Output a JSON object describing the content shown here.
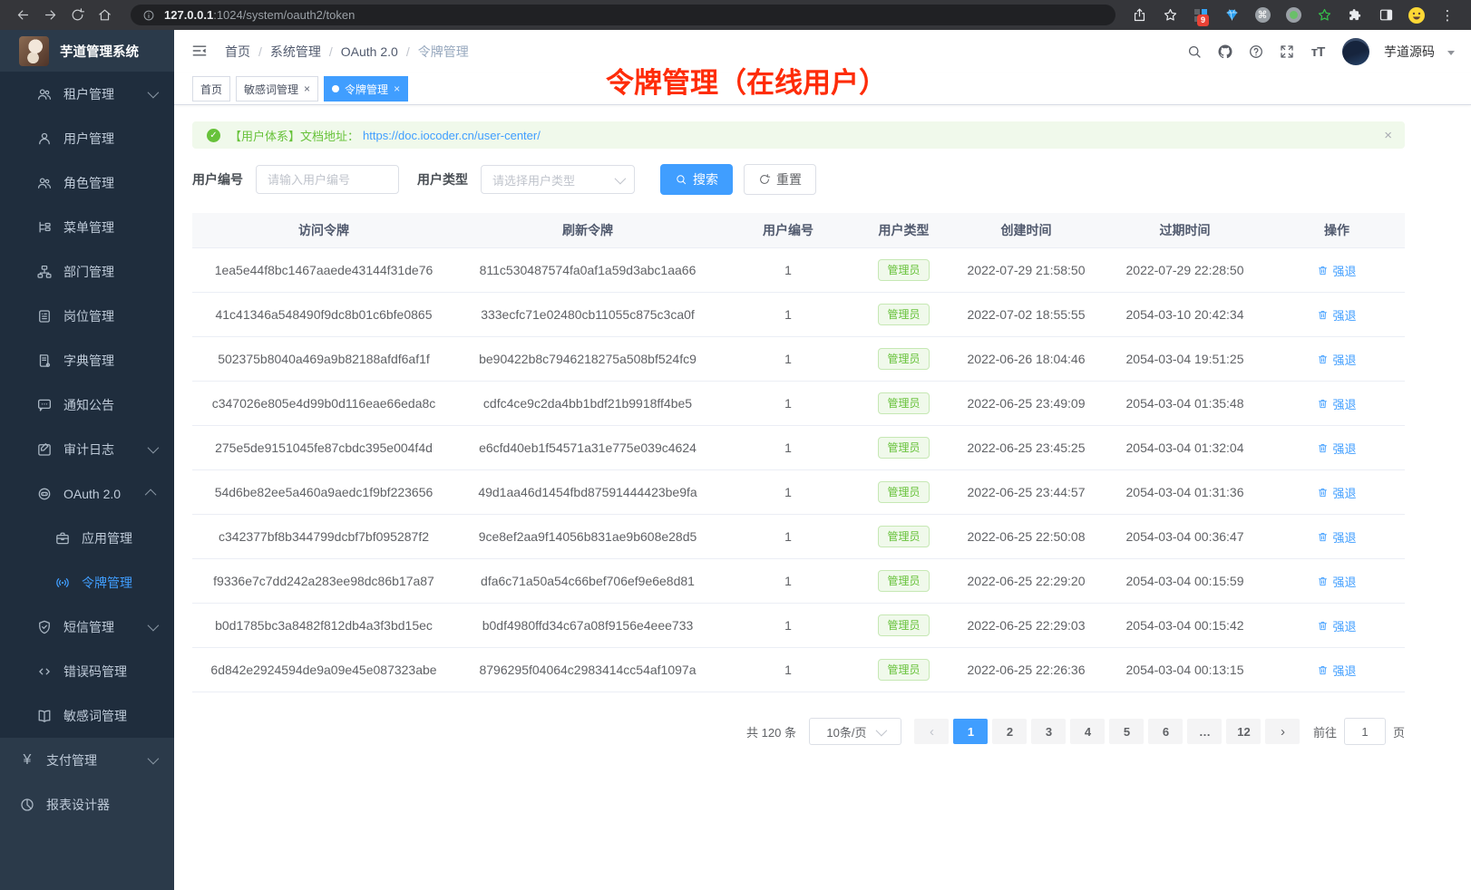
{
  "colors": {
    "accent": "#409eff",
    "success": "#67c23a",
    "annotation_red": "#fe2c09",
    "sidebar_bg": "#2b3a4a",
    "sidebar_submenu_bg": "#1f2d3d",
    "alert_bg": "#f0f9eb"
  },
  "icon_glyphs": {
    "yen": "¥",
    "font-size": "тT",
    "close": "×",
    "kebab": "⋮",
    "cmd": "⌘",
    "prev": "‹",
    "next": "›",
    "check": "✓",
    "ellipsis": "•••"
  },
  "browser": {
    "url_host": "127.0.0.1",
    "url_rest": ":1024/system/oauth2/token",
    "extension_badge": "9"
  },
  "sidebar": {
    "title": "芋道管理系统",
    "items": [
      {
        "id": "tenant",
        "label": "租户管理",
        "icon": "users",
        "level": 1,
        "chevron": "down"
      },
      {
        "id": "user",
        "label": "用户管理",
        "icon": "user",
        "level": 1
      },
      {
        "id": "role",
        "label": "角色管理",
        "icon": "users",
        "level": 1
      },
      {
        "id": "menu",
        "label": "菜单管理",
        "icon": "tree",
        "level": 1
      },
      {
        "id": "dept",
        "label": "部门管理",
        "icon": "org",
        "level": 1
      },
      {
        "id": "post",
        "label": "岗位管理",
        "icon": "badge",
        "level": 1
      },
      {
        "id": "dict",
        "label": "字典管理",
        "icon": "book",
        "level": 1
      },
      {
        "id": "notice",
        "label": "通知公告",
        "icon": "bubble",
        "level": 1
      },
      {
        "id": "audit-log",
        "label": "审计日志",
        "icon": "pen",
        "level": 1,
        "chevron": "down"
      },
      {
        "id": "oauth2",
        "label": "OAuth 2.0",
        "icon": "robot",
        "level": 1,
        "chevron": "up"
      },
      {
        "id": "oauth2-app",
        "label": "应用管理",
        "icon": "briefcase",
        "level": 2
      },
      {
        "id": "oauth2-token",
        "label": "令牌管理",
        "icon": "signal",
        "level": 2,
        "active": true
      },
      {
        "id": "sms",
        "label": "短信管理",
        "icon": "shield",
        "level": 1,
        "chevron": "down"
      },
      {
        "id": "error-code",
        "label": "错误码管理",
        "icon": "code",
        "level": 1
      },
      {
        "id": "sensitive-word",
        "label": "敏感词管理",
        "icon": "openbook",
        "level": 1
      },
      {
        "id": "pay",
        "label": "支付管理",
        "icon": "yen",
        "level": 0,
        "chevron": "down"
      },
      {
        "id": "report-designer",
        "label": "报表设计器",
        "icon": "report",
        "level": 0
      }
    ]
  },
  "header": {
    "breadcrumb": [
      {
        "label": "首页"
      },
      {
        "label": "系统管理"
      },
      {
        "label": "OAuth 2.0"
      },
      {
        "label": "令牌管理",
        "current": true
      }
    ],
    "separator": "/",
    "username": "芋道源码"
  },
  "tabbar": {
    "tabs": [
      {
        "label": "首页",
        "closable": false,
        "active": false
      },
      {
        "label": "敏感词管理",
        "closable": true,
        "active": false
      },
      {
        "label": "令牌管理",
        "closable": true,
        "active": true
      }
    ]
  },
  "annotation": "令牌管理（在线用户）",
  "alert": {
    "text": "【用户体系】文档地址：",
    "link": "https://doc.iocoder.cn/user-center/"
  },
  "filters": {
    "user_id_label": "用户编号",
    "user_id_placeholder": "请输入用户编号",
    "user_type_label": "用户类型",
    "user_type_placeholder": "请选择用户类型",
    "search_label": "搜索",
    "reset_label": "重置"
  },
  "table": {
    "columns": [
      "访问令牌",
      "刷新令牌",
      "用户编号",
      "用户类型",
      "创建时间",
      "过期时间",
      "操作"
    ],
    "action_label": "强退",
    "rows": [
      {
        "access": "1ea5e44f8bc1467aaede43144f31de76",
        "refresh": "811c530487574fa0af1a59d3abc1aa66",
        "user_id": "1",
        "user_type": "管理员",
        "created": "2022-07-29 21:58:50",
        "expires": "2022-07-29 22:28:50"
      },
      {
        "access": "41c41346a548490f9dc8b01c6bfe0865",
        "refresh": "333ecfc71e02480cb11055c875c3ca0f",
        "user_id": "1",
        "user_type": "管理员",
        "created": "2022-07-02 18:55:55",
        "expires": "2054-03-10 20:42:34"
      },
      {
        "access": "502375b8040a469a9b82188afdf6af1f",
        "refresh": "be90422b8c7946218275a508bf524fc9",
        "user_id": "1",
        "user_type": "管理员",
        "created": "2022-06-26 18:04:46",
        "expires": "2054-03-04 19:51:25"
      },
      {
        "access": "c347026e805e4d99b0d116eae66eda8c",
        "refresh": "cdfc4ce9c2da4bb1bdf21b9918ff4be5",
        "user_id": "1",
        "user_type": "管理员",
        "created": "2022-06-25 23:49:09",
        "expires": "2054-03-04 01:35:48"
      },
      {
        "access": "275e5de9151045fe87cbdc395e004f4d",
        "refresh": "e6cfd40eb1f54571a31e775e039c4624",
        "user_id": "1",
        "user_type": "管理员",
        "created": "2022-06-25 23:45:25",
        "expires": "2054-03-04 01:32:04"
      },
      {
        "access": "54d6be82ee5a460a9aedc1f9bf223656",
        "refresh": "49d1aa46d1454fbd87591444423be9fa",
        "user_id": "1",
        "user_type": "管理员",
        "created": "2022-06-25 23:44:57",
        "expires": "2054-03-04 01:31:36"
      },
      {
        "access": "c342377bf8b344799dcbf7bf095287f2",
        "refresh": "9ce8ef2aa9f14056b831ae9b608e28d5",
        "user_id": "1",
        "user_type": "管理员",
        "created": "2022-06-25 22:50:08",
        "expires": "2054-03-04 00:36:47"
      },
      {
        "access": "f9336e7c7dd242a283ee98dc86b17a87",
        "refresh": "dfa6c71a50a54c66bef706ef9e6e8d81",
        "user_id": "1",
        "user_type": "管理员",
        "created": "2022-06-25 22:29:20",
        "expires": "2054-03-04 00:15:59"
      },
      {
        "access": "b0d1785bc3a8482f812db4a3f3bd15ec",
        "refresh": "b0df4980ffd34c67a08f9156e4eee733",
        "user_id": "1",
        "user_type": "管理员",
        "created": "2022-06-25 22:29:03",
        "expires": "2054-03-04 00:15:42"
      },
      {
        "access": "6d842e2924594de9a09e45e087323abe",
        "refresh": "8796295f04064c2983414cc54af1097a",
        "user_id": "1",
        "user_type": "管理员",
        "created": "2022-06-25 22:26:36",
        "expires": "2054-03-04 00:13:15"
      }
    ]
  },
  "pagination": {
    "total_label": "共 120 条",
    "page_size": "10条/页",
    "pages": [
      "1",
      "2",
      "3",
      "4",
      "5",
      "6",
      "…",
      "12"
    ],
    "active_page": "1",
    "goto_label": "前往",
    "goto_value": "1",
    "goto_suffix": "页"
  }
}
